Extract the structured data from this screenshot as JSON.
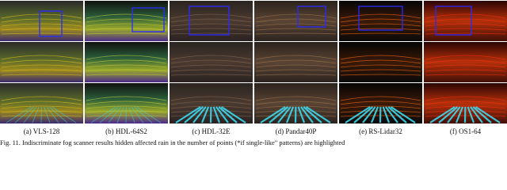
{
  "panels": [
    {
      "caption": "(a) VLS-128"
    },
    {
      "caption": "(b) HDL-64S2"
    },
    {
      "caption": "(c) HDL-32E"
    },
    {
      "caption": "(d) Pandar40P"
    },
    {
      "caption": "(e) RS-Lidar32"
    },
    {
      "caption": "(f) OS1-64"
    }
  ],
  "figure_caption": "Fig. 11. Indiscriminate fog scanner results hidden affected rain in the number of points (*if single-like\" patterns) are highlighted"
}
